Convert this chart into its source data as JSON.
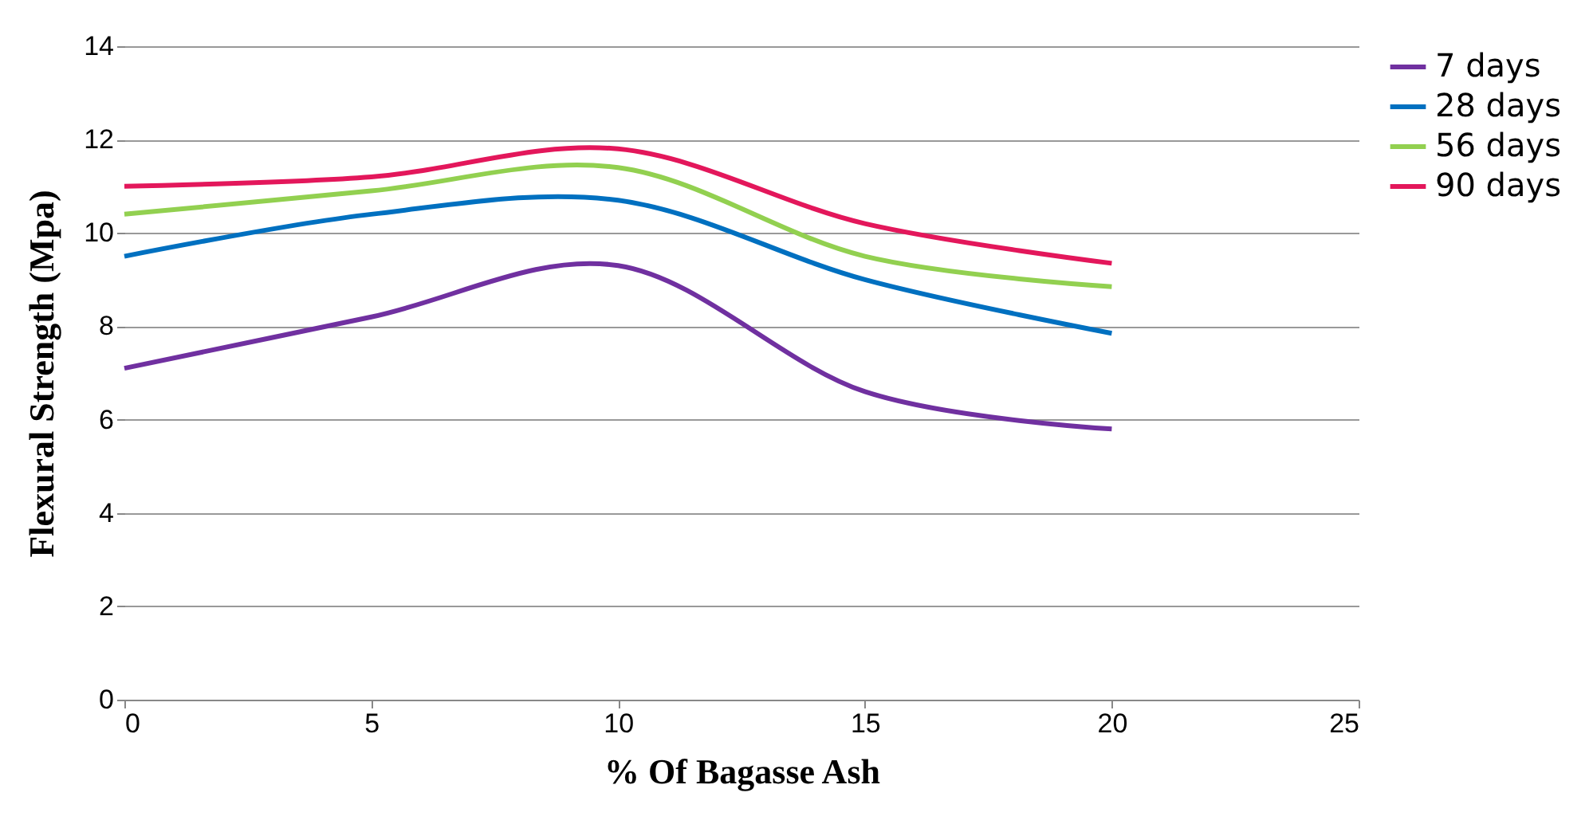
{
  "chart_data": {
    "type": "line",
    "xlabel": "% Of Bagasse Ash",
    "ylabel": "Flexural Strength (Mpa)",
    "x": [
      0,
      5,
      10,
      15,
      20
    ],
    "series": [
      {
        "name": "7 days",
        "color": "#7030a0",
        "values": [
          7.1,
          8.2,
          9.3,
          6.6,
          5.8
        ]
      },
      {
        "name": "28 days",
        "color": "#0070c0",
        "values": [
          9.5,
          10.4,
          10.7,
          9.0,
          7.85
        ]
      },
      {
        "name": "56 days",
        "color": "#92d050",
        "values": [
          10.4,
          10.9,
          11.4,
          9.5,
          8.85
        ]
      },
      {
        "name": "90 days",
        "color": "#e3175b",
        "values": [
          11.0,
          11.2,
          11.8,
          10.2,
          9.35
        ]
      }
    ],
    "xlim": [
      0,
      25
    ],
    "xticks": [
      0,
      5,
      10,
      15,
      20,
      25
    ],
    "ylim": [
      0,
      14
    ],
    "yticks": [
      0,
      2,
      4,
      6,
      8,
      10,
      12,
      14
    ],
    "grid": "y",
    "legend": "right",
    "marker": "none",
    "line_style": "solid"
  }
}
